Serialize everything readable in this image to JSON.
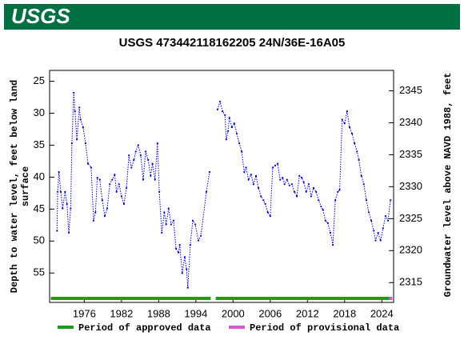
{
  "header": {
    "logo": "USGS"
  },
  "chart_data": {
    "type": "line",
    "title": "USGS 473442118162205 24N/36E-16A05",
    "y_label": [
      "Depth to water level, feet below land",
      "surface"
    ],
    "y2_label": "Groundwater level above NAVD 1988, feet",
    "xlim": [
      1970.4,
      2025.9
    ],
    "xticks": [
      1976,
      1982,
      1988,
      1994,
      2000,
      2006,
      2012,
      2018,
      2024
    ],
    "ylim": [
      59.6,
      23.3
    ],
    "yticks": [
      25,
      30,
      35,
      40,
      45,
      50,
      55
    ],
    "y2lim": [
      2311.9,
      2348.2
    ],
    "y2ticks": [
      2315,
      2320,
      2325,
      2330,
      2335,
      2340,
      2345
    ],
    "series": [
      {
        "color": "#0000cc",
        "x": [
          1971.6,
          1971.7,
          1971.9,
          1972.2,
          1972.5,
          1972.9,
          1973.2,
          1973.5,
          1973.8,
          1974.0,
          1974.3,
          1974.5,
          1974.8,
          1975.2,
          1975.4,
          1975.8,
          1976.2,
          1976.6,
          1977.1,
          1977.5,
          1977.8,
          1978.1,
          1978.5,
          1978.9,
          1979.3,
          1979.7,
          1980.1,
          1980.5,
          1980.9,
          1981.2,
          1981.6,
          1982.0,
          1982.4,
          1982.8,
          1983.2,
          1983.6,
          1984.0,
          1984.3,
          1984.7,
          1985.1,
          1985.5,
          1985.9,
          1986.3,
          1986.7,
          1987.0,
          1987.4,
          1987.8,
          1988.1,
          1988.5,
          1988.9,
          1989.2,
          1989.6,
          1990.0,
          1990.4,
          1990.8,
          1991.2,
          1991.4,
          1991.8,
          1992.2,
          1992.5,
          1992.7,
          1993.1,
          1993.5,
          1993.9,
          1994.4,
          1994.8,
          1995.7,
          1996.2,
          null,
          1997.5,
          1997.9,
          1998.3,
          1998.7,
          1998.9,
          1999.2,
          1999.4,
          1999.8,
          2000.2,
          2000.6,
          2001.0,
          2001.4,
          2001.8,
          2002.1,
          2002.5,
          2002.9,
          2003.3,
          2003.7,
          2004.1,
          2004.5,
          2004.9,
          2005.2,
          2005.6,
          2006.0,
          2006.4,
          2006.8,
          2007.2,
          2007.6,
          2008.0,
          2008.3,
          2008.7,
          2009.1,
          2009.5,
          2009.9,
          2010.3,
          2010.7,
          2011.1,
          2011.4,
          2011.8,
          2012.2,
          2012.6,
          2013.0,
          2013.4,
          2013.8,
          2014.2,
          2014.5,
          2014.9,
          2015.3,
          2015.7,
          2016.1,
          2016.5,
          2016.9,
          2017.2,
          2017.6,
          2018.0,
          2018.4,
          2018.8,
          2019.2,
          2019.6,
          2020.0,
          2020.3,
          2020.7,
          2021.1,
          2021.5,
          2021.9,
          2022.3,
          2022.7,
          2023.0,
          2023.4,
          2023.8,
          2024.2,
          2024.6,
          2025.0,
          2025.4
        ],
        "values": [
          48.4,
          42.3,
          39.2,
          42.3,
          44.9,
          42.3,
          44.2,
          48.7,
          44.9,
          34.7,
          26.8,
          29.7,
          34.1,
          29.1,
          31.0,
          32.2,
          34.7,
          37.9,
          38.5,
          46.8,
          45.5,
          40.1,
          40.4,
          43.6,
          46.1,
          44.9,
          41.1,
          40.4,
          39.6,
          42.3,
          41.1,
          43.0,
          44.2,
          41.7,
          36.6,
          38.5,
          37.3,
          36.0,
          35.0,
          36.6,
          40.4,
          36.0,
          37.3,
          39.8,
          37.9,
          40.4,
          34.7,
          42.3,
          48.7,
          45.5,
          47.4,
          44.9,
          47.4,
          46.8,
          51.2,
          51.8,
          50.6,
          55.0,
          52.5,
          54.4,
          57.3,
          50.6,
          46.8,
          47.4,
          49.9,
          49.2,
          42.3,
          39.2,
          null,
          29.4,
          28.2,
          29.7,
          30.3,
          34.1,
          32.8,
          30.7,
          32.2,
          31.6,
          33.2,
          34.7,
          36.0,
          39.2,
          38.5,
          40.4,
          39.6,
          41.1,
          39.8,
          41.7,
          43.0,
          43.6,
          44.2,
          45.5,
          46.1,
          38.5,
          38.2,
          37.9,
          40.4,
          40.1,
          41.1,
          40.4,
          41.3,
          41.1,
          42.3,
          43.0,
          39.8,
          40.1,
          40.8,
          42.3,
          41.1,
          43.0,
          41.7,
          42.3,
          43.6,
          44.6,
          45.1,
          46.8,
          47.2,
          48.7,
          50.6,
          43.6,
          42.3,
          42.0,
          31.0,
          31.6,
          29.7,
          32.2,
          33.2,
          34.7,
          36.0,
          37.3,
          39.8,
          41.1,
          43.6,
          45.5,
          46.8,
          48.4,
          49.9,
          48.7,
          49.9,
          48.0,
          46.1,
          46.8,
          43.6
        ]
      }
    ],
    "periods": [
      {
        "name": "Period of approved data",
        "color": "#1a9e1a",
        "spans": [
          [
            1970.6,
            1996.4
          ],
          [
            1997.2,
            2025.2
          ]
        ]
      },
      {
        "name": "Period of provisional data",
        "color": "#dd55cc",
        "spans": [
          [
            2025.2,
            2025.7
          ]
        ]
      }
    ]
  }
}
